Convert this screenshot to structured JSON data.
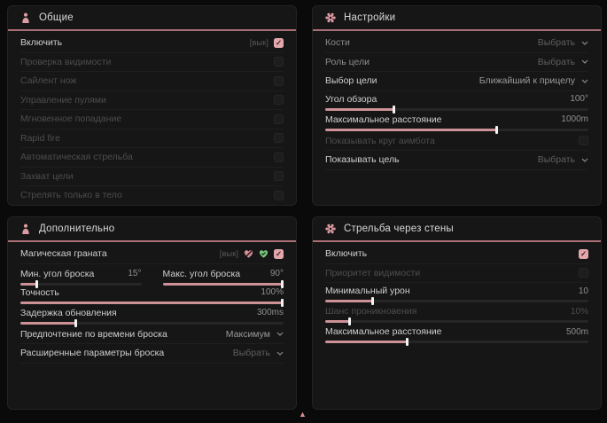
{
  "colors": {
    "accent_pink": "#e2a6ac",
    "header_line": "#a86f76",
    "slider_fill": "#cc9297",
    "panel_bg": "#161616",
    "page_bg": "#0a0a0a",
    "badge_green": "#7cc47f"
  },
  "panels": [
    {
      "id": "general",
      "title": "Общие",
      "icon": "person-icon",
      "rows": [
        {
          "type": "checkbox",
          "label": "Включить",
          "hotkey_label": "[вык]",
          "checked": true,
          "tone": "bright"
        },
        {
          "type": "checkbox",
          "label": "Проверка видимости",
          "checked": false,
          "tone": "dim"
        },
        {
          "type": "checkbox",
          "label": "Сайлент нож",
          "checked": false,
          "tone": "dim"
        },
        {
          "type": "checkbox",
          "label": "Управление пулями",
          "checked": false,
          "tone": "dim"
        },
        {
          "type": "checkbox",
          "label": "Мгновенное попадание",
          "checked": false,
          "tone": "dim"
        },
        {
          "type": "checkbox",
          "label": "Rapid fire",
          "checked": false,
          "tone": "dim"
        },
        {
          "type": "checkbox",
          "label": "Автоматическая стрельба",
          "checked": false,
          "tone": "dim"
        },
        {
          "type": "checkbox",
          "label": "Захват цели",
          "checked": false,
          "tone": "dim"
        },
        {
          "type": "checkbox",
          "label": "Стрелять только в тело",
          "checked": false,
          "tone": "dim"
        }
      ]
    },
    {
      "id": "settings",
      "title": "Настройки",
      "icon": "gear-icon",
      "rows": [
        {
          "type": "dropdown",
          "label": "Кости",
          "value": "Выбрать",
          "tone": "muted",
          "value_bright": false
        },
        {
          "type": "dropdown",
          "label": "Роль цели",
          "value": "Выбрать",
          "tone": "muted",
          "value_bright": false
        },
        {
          "type": "dropdown",
          "label": "Выбор цели",
          "value": "Ближайший к прицелу",
          "tone": "bright",
          "value_bright": true
        },
        {
          "type": "slider",
          "label": "Угол обзора",
          "value": "100°",
          "fill_pct": 26,
          "tone": "bright"
        },
        {
          "type": "slider",
          "label": "Максимальное расстояние",
          "value": "1000m",
          "fill_pct": 65,
          "tone": "bright"
        },
        {
          "type": "checkbox",
          "label": "Показывать круг аимбота",
          "checked": false,
          "tone": "dim"
        },
        {
          "type": "dropdown",
          "label": "Показывать цель",
          "value": "Выбрать",
          "tone": "bright",
          "value_bright": false
        }
      ]
    },
    {
      "id": "additional",
      "title": "Дополнительно",
      "icon": "person-icon",
      "rows": [
        {
          "type": "checkbox",
          "label": "Магическая граната",
          "hotkey_label": "[вык]",
          "checked": true,
          "tone": "bright",
          "badges": [
            "heart-slash-icon",
            "heart-check-icon"
          ]
        },
        {
          "type": "slider-pair",
          "sliders": [
            {
              "label": "Мин. угол броска",
              "value": "15°",
              "fill_pct": 13,
              "tone": "bright"
            },
            {
              "label": "Макс. угол броска",
              "value": "90°",
              "fill_pct": 100,
              "tone": "bright"
            }
          ]
        },
        {
          "type": "slider",
          "label": "Точность",
          "value": "100%",
          "fill_pct": 100,
          "tone": "bright"
        },
        {
          "type": "slider",
          "label": "Задержка обновления",
          "value": "300ms",
          "fill_pct": 21,
          "tone": "bright"
        },
        {
          "type": "dropdown",
          "label": "Предпочтение по времени броска",
          "value": "Максимум",
          "tone": "bright",
          "value_bright": true
        },
        {
          "type": "dropdown",
          "label": "Расширенные параметры броска",
          "value": "Выбрать",
          "tone": "bright",
          "value_bright": false
        }
      ]
    },
    {
      "id": "wallbang",
      "title": "Стрельба через стены",
      "icon": "gear-icon",
      "rows": [
        {
          "type": "checkbox",
          "label": "Включить",
          "checked": true,
          "tone": "bright"
        },
        {
          "type": "checkbox",
          "label": "Приоритет видимости",
          "checked": false,
          "tone": "dim"
        },
        {
          "type": "slider",
          "label": "Минимальный урон",
          "value": "10",
          "fill_pct": 18,
          "tone": "bright"
        },
        {
          "type": "slider",
          "label": "Шанс проникновения",
          "value": "10%",
          "fill_pct": 9,
          "tone": "dim"
        },
        {
          "type": "slider",
          "label": "Максимальное расстояние",
          "value": "500m",
          "fill_pct": 31,
          "tone": "bright"
        }
      ]
    }
  ],
  "check_glyph": "✓"
}
